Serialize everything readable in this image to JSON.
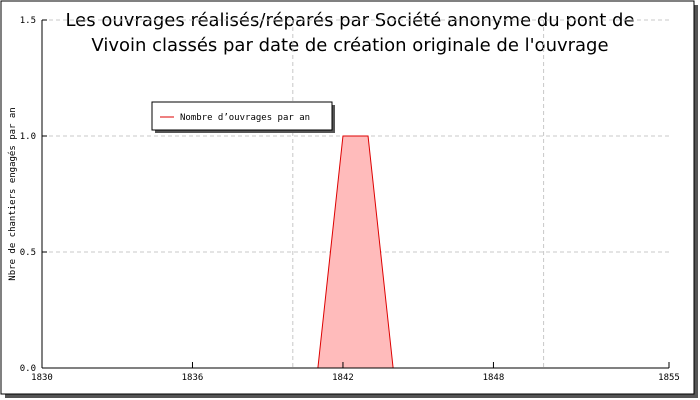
{
  "chart_data": {
    "type": "area",
    "title": [
      "Les ouvrages réalisés/réparés par Société anonyme du pont de",
      "Vivoin classés par date de création originale de l'ouvrage"
    ],
    "y_label": "Nbre de chantiers engagés par an",
    "x": [
      1841,
      1842,
      1843,
      1844
    ],
    "series": [
      {
        "name": "Nombre d’ouvrages par an",
        "color": "#dd0000",
        "fill": "#ffbbbb",
        "values": [
          0,
          1,
          1,
          0
        ]
      }
    ],
    "xlim": [
      1830,
      1855
    ],
    "xticks": [
      1830,
      1836,
      1842,
      1848,
      1855
    ],
    "xgrid": [
      1840,
      1850
    ],
    "ylim": [
      0,
      1.5
    ],
    "yticks": [
      {
        "value": 0,
        "label": "0.0"
      },
      {
        "value": 0.5,
        "label": "0.5"
      },
      {
        "value": 1,
        "label": "1.0"
      },
      {
        "value": 1.5,
        "label": "1.5"
      }
    ],
    "grid": true,
    "legend": "top-left"
  }
}
